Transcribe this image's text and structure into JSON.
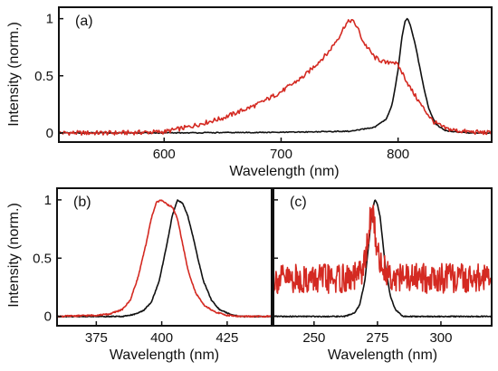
{
  "colors": {
    "series_black": "#111111",
    "series_red": "#d42a22",
    "axis": "#111111",
    "background": "#ffffff"
  },
  "y_axis_label": "Intensity (norm.)",
  "chart_data": [
    {
      "type": "line",
      "panel_label": "(a)",
      "xlabel": "Wavelength (nm)",
      "ylabel": "Intensity (norm.)",
      "xlim": [
        510,
        880
      ],
      "ylim": [
        -0.08,
        1.1
      ],
      "xticks": [
        600,
        700,
        800
      ],
      "yticks": [
        0,
        0.5,
        1
      ],
      "ytick_labels": [
        "0",
        "0.5",
        "1"
      ],
      "grid": false,
      "noise_red": 0.02,
      "series": [
        {
          "color": "#111111",
          "x": [
            510,
            600,
            700,
            760,
            780,
            790,
            795,
            800,
            803,
            806,
            808,
            810,
            812,
            815,
            818,
            822,
            826,
            832,
            840,
            860,
            880
          ],
          "y": [
            0,
            0,
            0.005,
            0.015,
            0.05,
            0.12,
            0.25,
            0.55,
            0.82,
            0.98,
            1.0,
            0.96,
            0.88,
            0.76,
            0.6,
            0.4,
            0.22,
            0.08,
            0.02,
            0.0,
            0.0
          ]
        },
        {
          "color": "#d42a22",
          "x": [
            510,
            560,
            600,
            620,
            650,
            680,
            700,
            720,
            740,
            750,
            755,
            760,
            765,
            770,
            780,
            790,
            795,
            800,
            805,
            810,
            820,
            830,
            840,
            850,
            860,
            880
          ],
          "y": [
            0,
            0,
            0.01,
            0.05,
            0.13,
            0.25,
            0.36,
            0.5,
            0.7,
            0.85,
            0.95,
            0.99,
            0.93,
            0.8,
            0.66,
            0.61,
            0.63,
            0.59,
            0.5,
            0.4,
            0.24,
            0.1,
            0.04,
            0.02,
            0.01,
            0.0
          ]
        }
      ]
    },
    {
      "type": "line",
      "panel_label": "(b)",
      "xlabel": "Wavelength (nm)",
      "ylabel": "Intensity (norm.)",
      "xlim": [
        360,
        442
      ],
      "ylim": [
        -0.08,
        1.1
      ],
      "xticks": [
        375,
        400,
        425
      ],
      "yticks": [
        0,
        0.5,
        1
      ],
      "ytick_labels": [
        "0",
        "0.5",
        "1"
      ],
      "grid": false,
      "noise_red": 0.006,
      "series": [
        {
          "color": "#111111",
          "x": [
            360,
            385,
            390,
            393,
            396,
            399,
            402,
            404,
            406,
            408,
            410,
            412,
            414,
            416,
            419,
            422,
            426,
            430,
            442
          ],
          "y": [
            0,
            0,
            0.02,
            0.05,
            0.12,
            0.3,
            0.62,
            0.86,
            1.0,
            0.97,
            0.86,
            0.68,
            0.48,
            0.3,
            0.14,
            0.06,
            0.02,
            0.0,
            0.0
          ]
        },
        {
          "color": "#d42a22",
          "x": [
            360,
            375,
            380,
            385,
            388,
            391,
            394,
            396,
            398,
            400,
            402,
            404,
            406,
            408,
            410,
            413,
            416,
            420,
            425,
            430,
            442
          ],
          "y": [
            0,
            0.01,
            0.02,
            0.06,
            0.14,
            0.34,
            0.62,
            0.84,
            0.98,
            1.0,
            0.96,
            0.94,
            0.84,
            0.62,
            0.4,
            0.2,
            0.1,
            0.04,
            0.01,
            0.0,
            0.0
          ]
        }
      ]
    },
    {
      "type": "line",
      "panel_label": "(c)",
      "xlabel": "Wavelength (nm)",
      "ylabel": "",
      "xlim": [
        234,
        320
      ],
      "ylim": [
        -0.08,
        1.1
      ],
      "xticks": [
        250,
        275,
        300
      ],
      "yticks": [
        0,
        0.5,
        1
      ],
      "ytick_labels": [
        "",
        "",
        ""
      ],
      "grid": false,
      "noise_red": 0.08,
      "series": [
        {
          "color": "#111111",
          "x": [
            234,
            262,
            266,
            268,
            270,
            272,
            273,
            274,
            275,
            276,
            277,
            278,
            280,
            282,
            285,
            320
          ],
          "y": [
            0,
            0,
            0.03,
            0.1,
            0.3,
            0.72,
            0.92,
            1.0,
            0.96,
            0.86,
            0.66,
            0.45,
            0.18,
            0.06,
            0.0,
            0.0
          ]
        },
        {
          "color": "#d42a22",
          "x": [
            234,
            265,
            268,
            270,
            271,
            272,
            273,
            274,
            275,
            276,
            278,
            280,
            283,
            320
          ],
          "y": [
            0.32,
            0.32,
            0.36,
            0.46,
            0.62,
            0.8,
            0.9,
            0.74,
            0.56,
            0.46,
            0.4,
            0.36,
            0.33,
            0.32
          ]
        }
      ]
    }
  ]
}
